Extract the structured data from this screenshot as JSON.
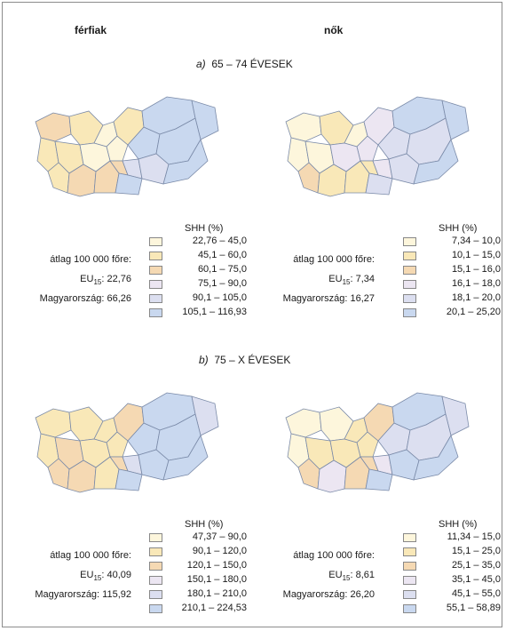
{
  "headers": {
    "left": "férfiak",
    "right": "nők"
  },
  "sections": [
    {
      "letter": "a)",
      "title": "65 – 74 ÉVESEK",
      "maps": [
        {
          "legend_title": "SHH (%)",
          "stats": {
            "avg_label": "átlag 100 000 főre:",
            "eu_prefix": "EU",
            "eu_sub": "15",
            "eu_value": ": 22,76",
            "hu": "Magyarország: 66,26"
          },
          "classes": [
            {
              "label": "22,76 – 45,0",
              "color": "#fdf6dc"
            },
            {
              "label": "45,1 – 60,0",
              "color": "#f9e8b8"
            },
            {
              "label": "60,1 – 75,0",
              "color": "#f5d9b3"
            },
            {
              "label": "75,1 – 90,0",
              "color": "#ece6f2"
            },
            {
              "label": "90,1 – 105,0",
              "color": "#dcdff0"
            },
            {
              "label": "105,1 – 116,93",
              "color": "#c9d8ef"
            }
          ]
        },
        {
          "legend_title": "SHH (%)",
          "stats": {
            "avg_label": "átlag 100 000 főre:",
            "eu_prefix": "EU",
            "eu_sub": "15",
            "eu_value": ": 7,34",
            "hu": "Magyarország: 16,27"
          },
          "classes": [
            {
              "label": "7,34 – 10,0",
              "color": "#fdf6dc"
            },
            {
              "label": "10,1 – 15,0",
              "color": "#f9e8b8"
            },
            {
              "label": "15,1 – 16,0",
              "color": "#f5d9b3"
            },
            {
              "label": "16,1 – 18,0",
              "color": "#ece6f2"
            },
            {
              "label": "18,1 – 20,0",
              "color": "#dcdff0"
            },
            {
              "label": "20,1 – 25,20",
              "color": "#c9d8ef"
            }
          ]
        }
      ]
    },
    {
      "letter": "b)",
      "title": "75 – X ÉVESEK",
      "maps": [
        {
          "legend_title": "SHH (%)",
          "stats": {
            "avg_label": "átlag 100 000 főre:",
            "eu_prefix": "EU",
            "eu_sub": "15",
            "eu_value": ": 40,09",
            "hu": "Magyarország: 115,92"
          },
          "classes": [
            {
              "label": "47,37 – 90,0",
              "color": "#fdf6dc"
            },
            {
              "label": "90,1 – 120,0",
              "color": "#f9e8b8"
            },
            {
              "label": "120,1 – 150,0",
              "color": "#f5d9b3"
            },
            {
              "label": "150,1 – 180,0",
              "color": "#ece6f2"
            },
            {
              "label": "180,1 – 210,0",
              "color": "#dcdff0"
            },
            {
              "label": "210,1 – 224,53",
              "color": "#c9d8ef"
            }
          ]
        },
        {
          "legend_title": "SHH (%)",
          "stats": {
            "avg_label": "átlag 100 000 főre:",
            "eu_prefix": "EU",
            "eu_sub": "15",
            "eu_value": ": 8,61",
            "hu": "Magyarország: 26,20"
          },
          "classes": [
            {
              "label": "11,34 – 15,0",
              "color": "#fdf6dc"
            },
            {
              "label": "15,1 – 25,0",
              "color": "#f9e8b8"
            },
            {
              "label": "25,1 – 35,0",
              "color": "#f5d9b3"
            },
            {
              "label": "35,1 – 45,0",
              "color": "#ece6f2"
            },
            {
              "label": "45,1 – 55,0",
              "color": "#dcdff0"
            },
            {
              "label": "55,1 – 58,89",
              "color": "#c9d8ef"
            }
          ]
        }
      ]
    }
  ],
  "map_fill_classes": [
    [
      2,
      1,
      1,
      1,
      0,
      0,
      0,
      1,
      2,
      2,
      2,
      1,
      5,
      4,
      5,
      5,
      5,
      5,
      4,
      5
    ],
    [
      0,
      1,
      0,
      0,
      0,
      3,
      3,
      2,
      1,
      1,
      1,
      3,
      4,
      3,
      4,
      5,
      5,
      4,
      4,
      5
    ],
    [
      1,
      1,
      1,
      2,
      1,
      1,
      1,
      2,
      2,
      1,
      2,
      2,
      5,
      4,
      5,
      5,
      4,
      5,
      5,
      5
    ],
    [
      0,
      0,
      0,
      1,
      1,
      1,
      1,
      2,
      3,
      2,
      2,
      2,
      4,
      3,
      5,
      5,
      4,
      4,
      5,
      5
    ]
  ]
}
